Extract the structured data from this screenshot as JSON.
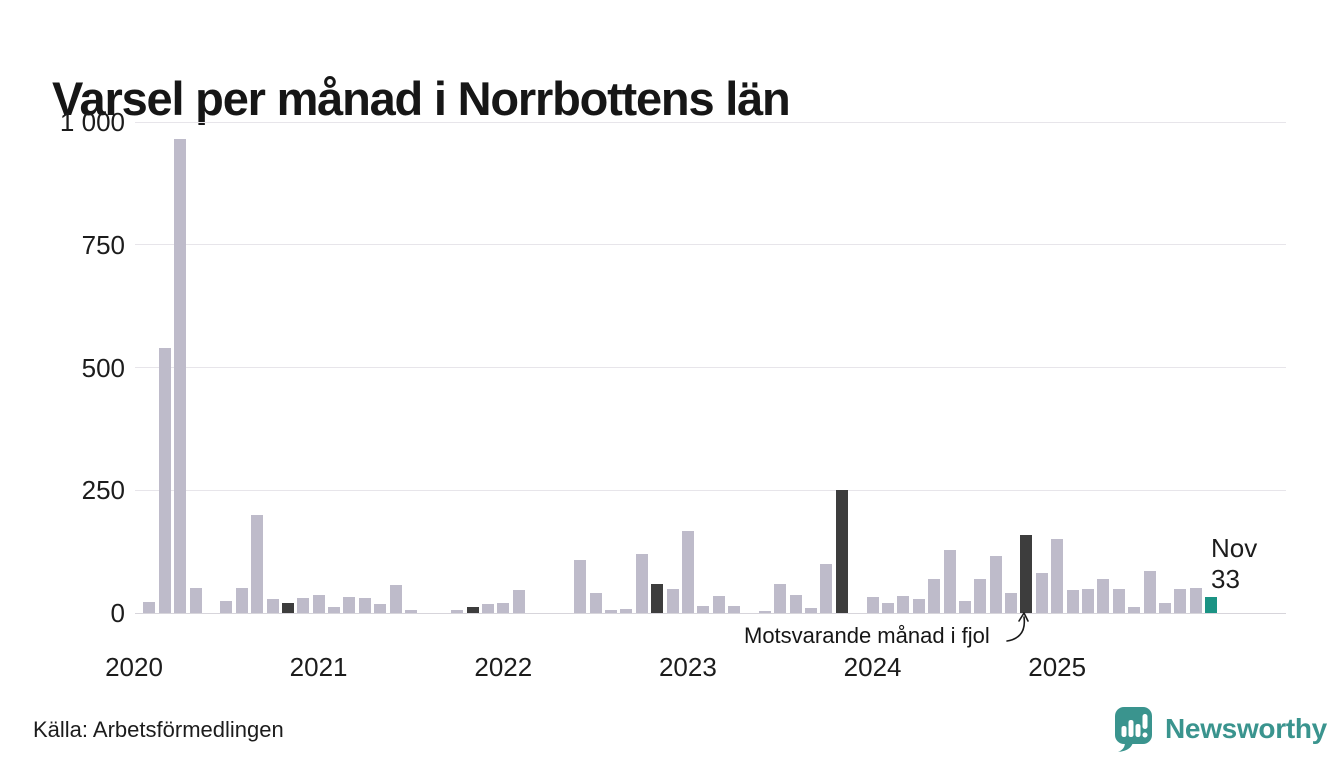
{
  "title": "Varsel per månad i Norrbottens län",
  "source_label": "Källa: Arbetsförmedlingen",
  "branding": {
    "name": "Newsworthy",
    "color": "#3a948e"
  },
  "annotation": {
    "text": "Motsvarande månad i fjol"
  },
  "last_label": {
    "line1": "Nov",
    "line2": "33"
  },
  "colors": {
    "bar": "#bebbca",
    "highlight": "#3d3d3d",
    "current": "#1b9384",
    "grid": "#e7e5ea",
    "axis_line": "#d7d5db",
    "text": "#1c1c1c"
  },
  "chart_data": {
    "type": "bar",
    "title": "Varsel per månad i Norrbottens län",
    "xlabel": "",
    "ylabel": "",
    "start": "2020-01",
    "end": "2025-11",
    "ylim": [
      0,
      1000
    ],
    "grid": true,
    "legend": false,
    "yticks": [
      {
        "label": "0",
        "value": 0
      },
      {
        "label": "250",
        "value": 250
      },
      {
        "label": "500",
        "value": 500
      },
      {
        "label": "750",
        "value": 750
      },
      {
        "label": "1 000",
        "value": 1000
      }
    ],
    "year_ticks": [
      {
        "label": "2020",
        "index": 0
      },
      {
        "label": "2021",
        "index": 12
      },
      {
        "label": "2022",
        "index": 24
      },
      {
        "label": "2023",
        "index": 36
      },
      {
        "label": "2024",
        "index": 48
      },
      {
        "label": "2025",
        "index": 60
      }
    ],
    "values": [
      0,
      23,
      540,
      965,
      52,
      0,
      25,
      51,
      200,
      29,
      20,
      31,
      37,
      12,
      33,
      31,
      19,
      58,
      6,
      0,
      0,
      7,
      12,
      18,
      20,
      47,
      0,
      0,
      0,
      109,
      41,
      7,
      8,
      120,
      60,
      48,
      167,
      14,
      34,
      15,
      0,
      5,
      60,
      36,
      11,
      99,
      250,
      0,
      33,
      20,
      35,
      29,
      69,
      128,
      24,
      69,
      116,
      40,
      158,
      82,
      151,
      47,
      50,
      70,
      50,
      13,
      86,
      20,
      48,
      51,
      33
    ],
    "highlighted_indices": [
      10,
      22,
      34,
      46,
      58
    ],
    "current_index": 70
  }
}
